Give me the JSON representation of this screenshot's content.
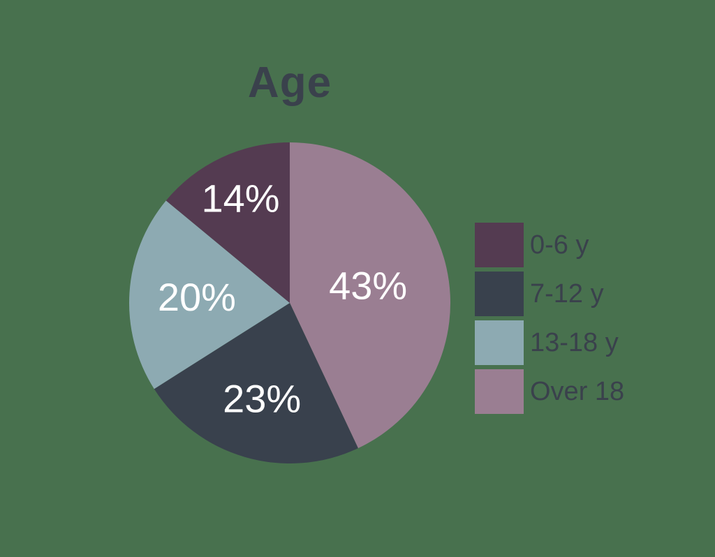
{
  "page": {
    "background_color": "#48714e"
  },
  "chart_data": {
    "type": "pie",
    "title": "Age",
    "title_color": "#3a414c",
    "categories": [
      "0-6 y",
      "7-12 y",
      "13-18 y",
      "Over 18"
    ],
    "values": [
      14,
      23,
      20,
      43
    ],
    "colors": [
      "#543b51",
      "#39414d",
      "#8daab2",
      "#9a7e92"
    ],
    "slice_labels": [
      "14%",
      "23%",
      "20%",
      "43%"
    ],
    "slice_label_color": "#ffffff",
    "arc_order_clockwise_from_top": [
      "Over 18",
      "7-12 y",
      "13-18 y",
      "0-6 y"
    ],
    "start_angle_deg": 0,
    "legend_position": "right",
    "legend_text_color": "#3a414c"
  }
}
